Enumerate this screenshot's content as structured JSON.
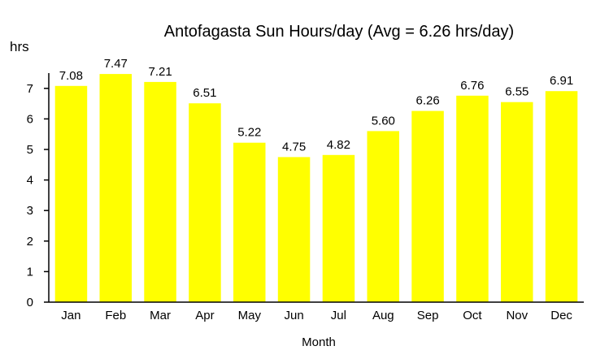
{
  "chart_data": {
    "type": "bar",
    "title": "Antofagasta Sun Hours/day (Avg = 6.26 hrs/day)",
    "xlabel": "Month",
    "ylabel": "hrs",
    "categories": [
      "Jan",
      "Feb",
      "Mar",
      "Apr",
      "May",
      "Jun",
      "Jul",
      "Aug",
      "Sep",
      "Oct",
      "Nov",
      "Dec"
    ],
    "values": [
      7.08,
      7.47,
      7.21,
      6.51,
      5.22,
      4.75,
      4.82,
      5.6,
      6.26,
      6.76,
      6.55,
      6.91
    ],
    "data_labels": [
      "7.08",
      "7.47",
      "7.21",
      "6.51",
      "5.22",
      "4.75",
      "4.82",
      "5.60",
      "6.26",
      "6.76",
      "6.55",
      "6.91"
    ],
    "yticks": [
      0,
      1,
      2,
      3,
      4,
      5,
      6,
      7
    ],
    "ylim": [
      0,
      7.5
    ],
    "grid": false,
    "legend": "none",
    "bar_color": "#ffff00"
  }
}
